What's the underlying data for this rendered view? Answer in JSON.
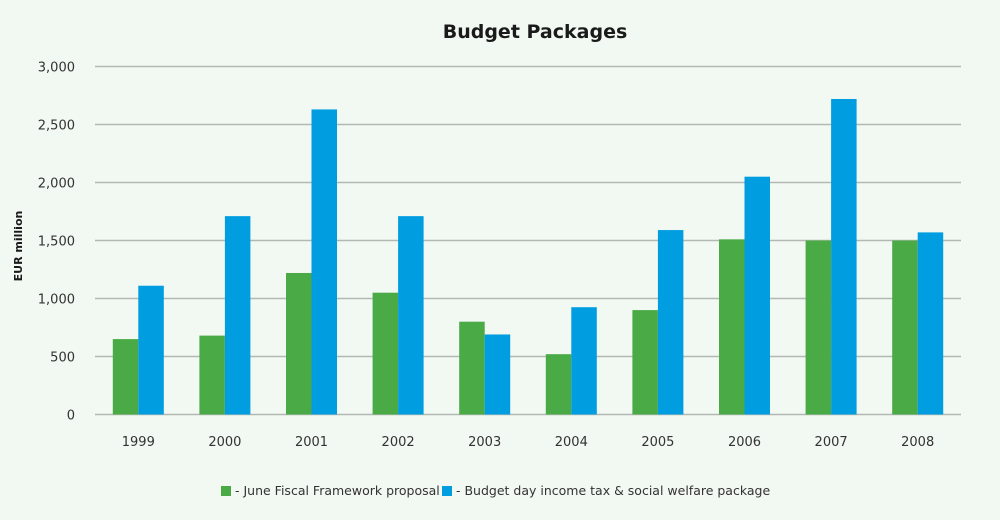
{
  "chart_data": {
    "type": "bar",
    "title": "Budget Packages",
    "xlabel": "",
    "ylabel": "EUR million",
    "ylim": [
      0,
      3000
    ],
    "yticks": [
      0,
      500,
      1000,
      1500,
      2000,
      2500,
      3000
    ],
    "ytick_labels": [
      "0",
      "500",
      "1,000",
      "1,500",
      "2,000",
      "2,500",
      "3,000"
    ],
    "grid": true,
    "legend_position": "bottom",
    "categories": [
      "1999",
      "2000",
      "2001",
      "2002",
      "2003",
      "2004",
      "2005",
      "2006",
      "2007",
      "2008"
    ],
    "series": [
      {
        "name": "- June Fiscal Framework proposal",
        "color": "#4aaa45",
        "values": [
          650,
          680,
          1220,
          1050,
          800,
          520,
          900,
          1510,
          1500,
          1500
        ]
      },
      {
        "name": "- Budget day income tax & social welfare package",
        "color": "#009ee0",
        "values": [
          1110,
          1710,
          2630,
          1710,
          690,
          925,
          1590,
          2050,
          2720,
          1570
        ]
      }
    ]
  }
}
